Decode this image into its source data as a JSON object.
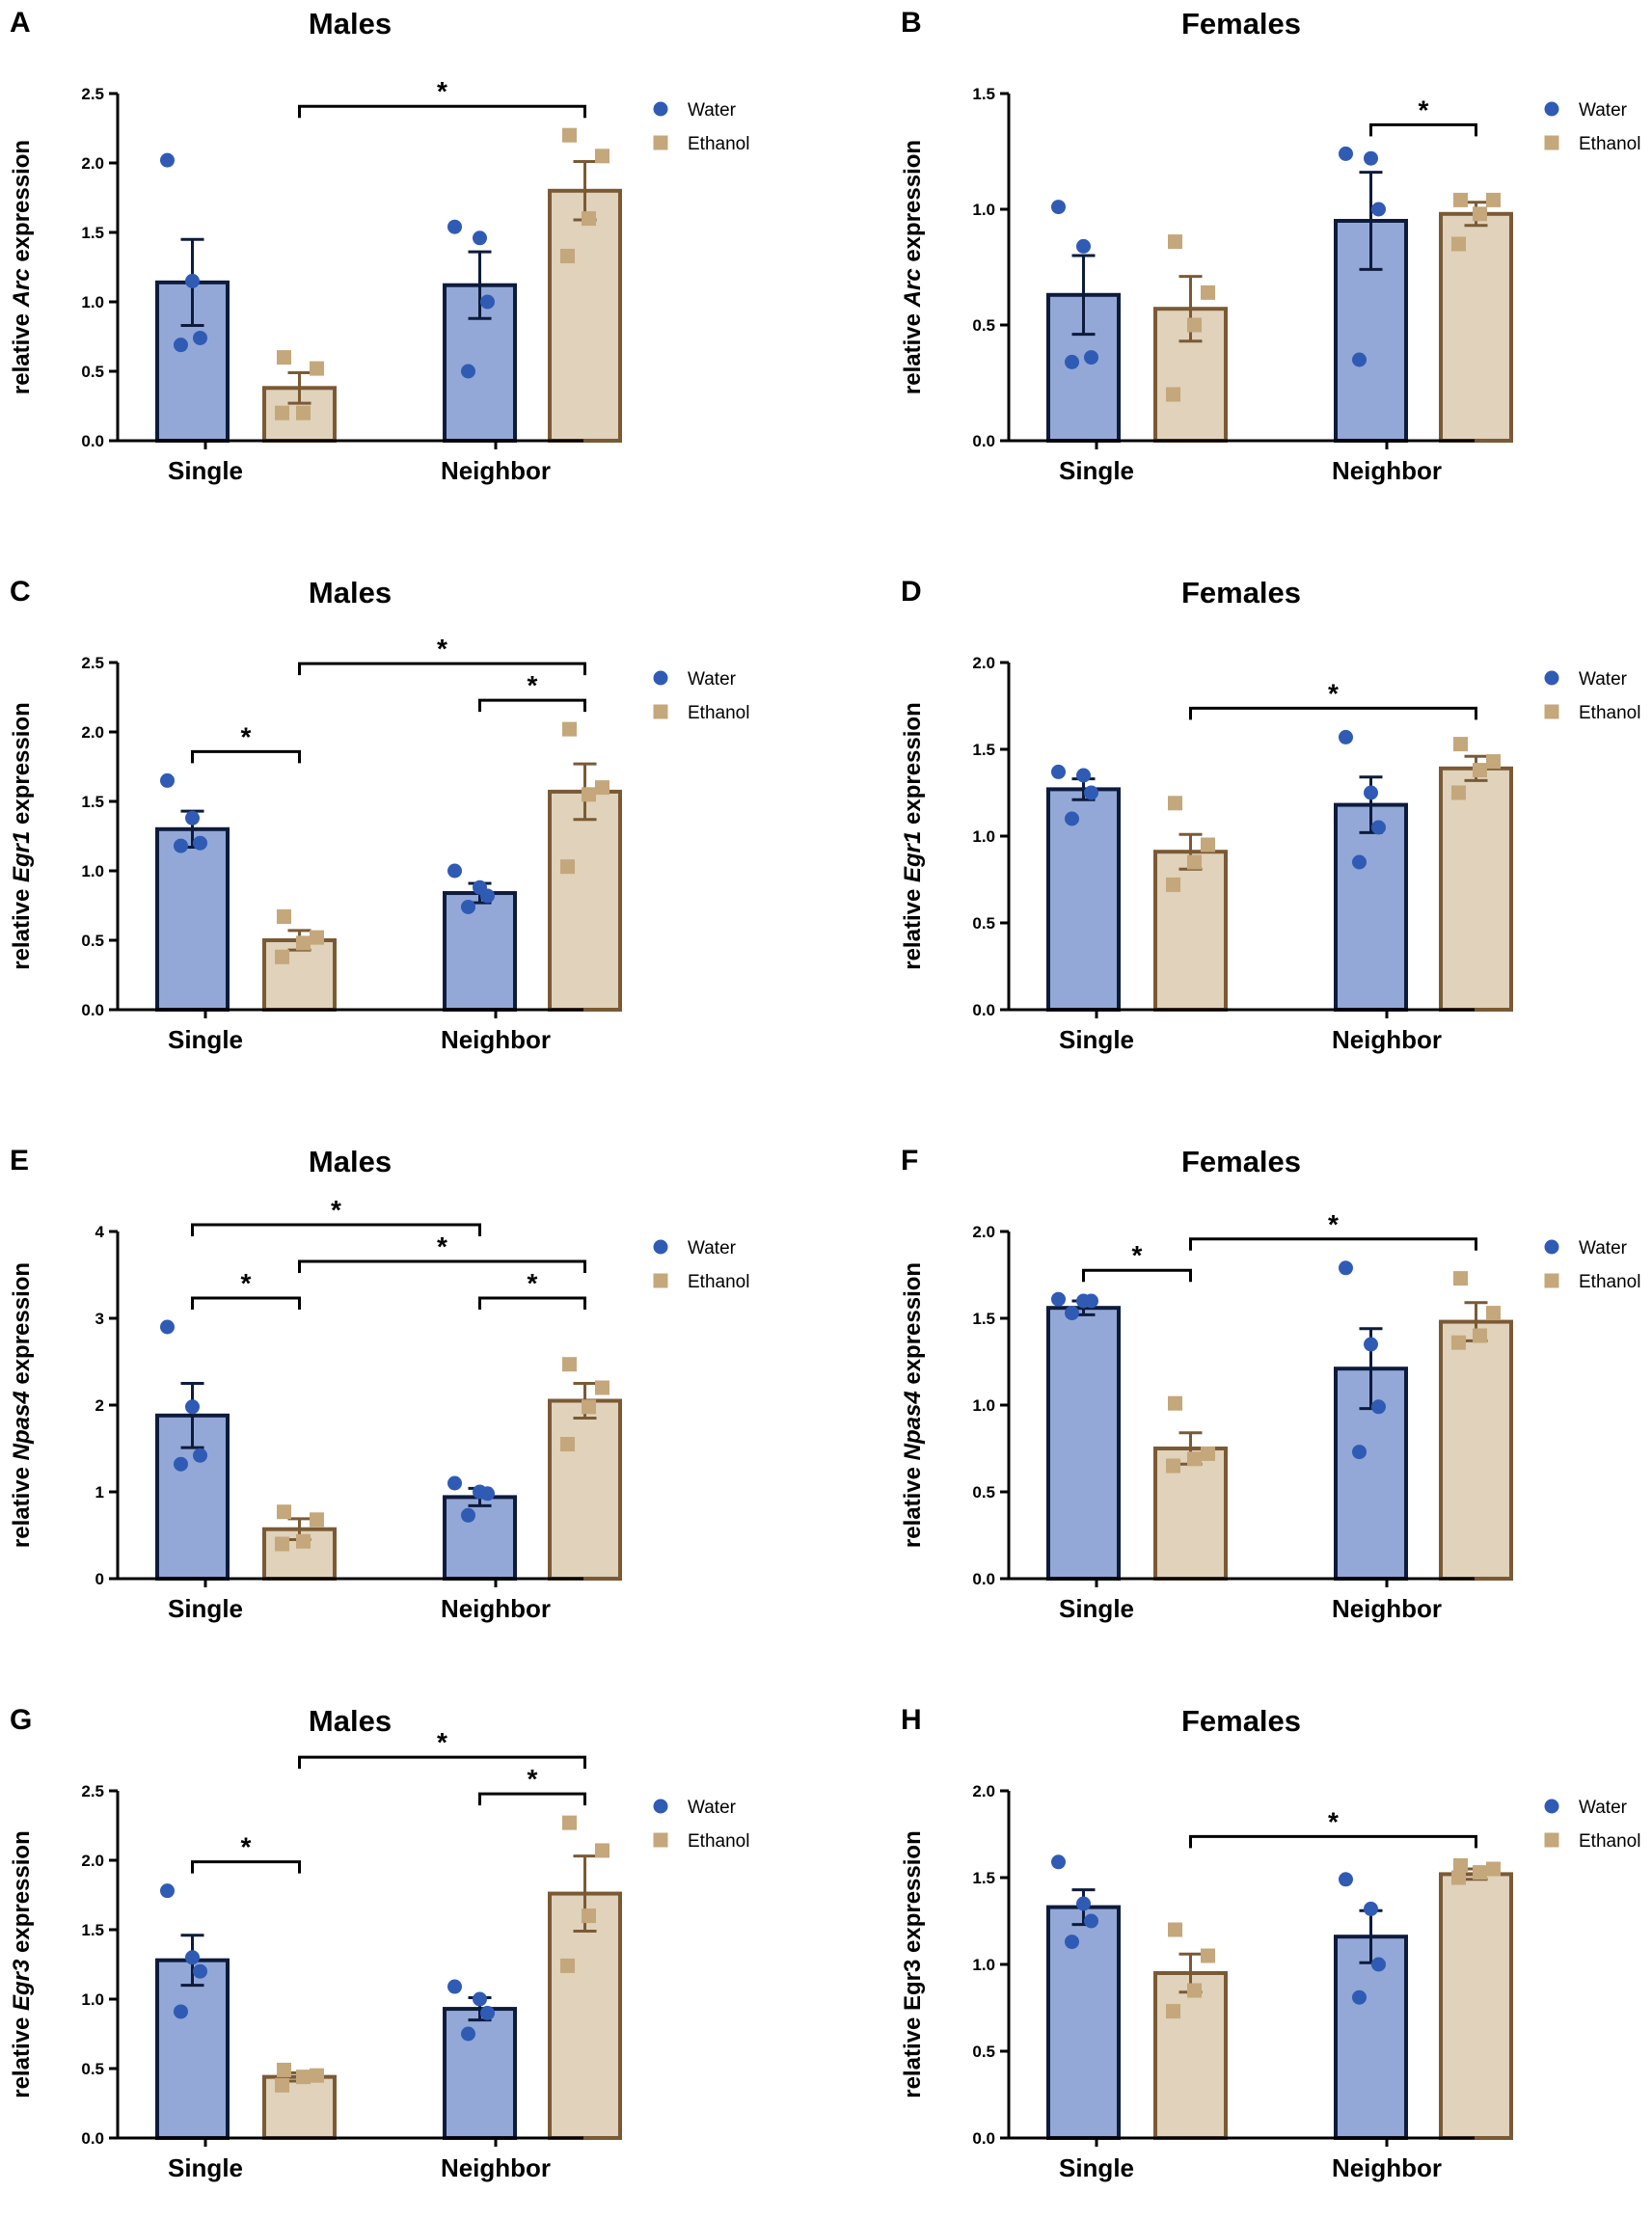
{
  "figure": {
    "legend": {
      "water": "Water",
      "ethanol": "Ethanol"
    },
    "colors": {
      "water_fill": "#93a8d6",
      "water_stroke": "#0d1b3d",
      "water_point": "#2f5bb5",
      "ethanol_fill": "#e0d2bb",
      "ethanol_stroke": "#7a5a35",
      "ethanol_point": "#c4a77b"
    }
  },
  "chart_data": [
    {
      "panel": "A",
      "title": "Males",
      "type": "bar",
      "ylabel_pre": "relative ",
      "ylabel_gene": "Arc",
      "ylabel_post": " expression",
      "ylim": [
        0,
        2.5
      ],
      "yticks": [
        "0.0",
        "0.5",
        "1.0",
        "1.5",
        "2.0",
        "2.5"
      ],
      "categories": [
        "Single",
        "Neighbor"
      ],
      "series": [
        {
          "name": "Water",
          "values": [
            1.14,
            1.12
          ],
          "sem": [
            0.31,
            0.24
          ],
          "points": [
            [
              2.02,
              1.15,
              0.74,
              0.69
            ],
            [
              1.54,
              1.46,
              1.0,
              0.5
            ]
          ]
        },
        {
          "name": "Ethanol",
          "values": [
            0.38,
            1.8
          ],
          "sem": [
            0.11,
            0.21
          ],
          "points": [
            [
              0.6,
              0.52,
              0.2,
              0.2
            ],
            [
              2.2,
              2.05,
              1.6,
              1.33
            ]
          ]
        }
      ],
      "significance": [
        {
          "bars": [
            1,
            3
          ],
          "level": 0,
          "label": "*"
        }
      ]
    },
    {
      "panel": "B",
      "title": "Females",
      "type": "bar",
      "ylabel_pre": "relative ",
      "ylabel_gene": "Arc",
      "ylabel_post": " expression",
      "ylim": [
        0,
        1.5
      ],
      "yticks": [
        "0.0",
        "0.5",
        "1.0",
        "1.5"
      ],
      "categories": [
        "Single",
        "Neighbor"
      ],
      "series": [
        {
          "name": "Water",
          "values": [
            0.63,
            0.95
          ],
          "sem": [
            0.17,
            0.21
          ],
          "points": [
            [
              1.01,
              0.84,
              0.36,
              0.34
            ],
            [
              1.24,
              1.22,
              1.0,
              0.35
            ]
          ]
        },
        {
          "name": "Ethanol",
          "values": [
            0.57,
            0.98
          ],
          "sem": [
            0.14,
            0.05
          ],
          "points": [
            [
              0.86,
              0.64,
              0.5,
              0.2
            ],
            [
              1.04,
              1.04,
              0.98,
              0.85
            ]
          ]
        }
      ],
      "significance": [
        {
          "bars": [
            2,
            3
          ],
          "level": 0,
          "label": "*"
        }
      ]
    },
    {
      "panel": "C",
      "title": "Males",
      "type": "bar",
      "ylabel_pre": "relative ",
      "ylabel_gene": "Egr1",
      "ylabel_post": " expression",
      "ylim": [
        0,
        2.5
      ],
      "yticks": [
        "0.0",
        "0.5",
        "1.0",
        "1.5",
        "2.0",
        "2.5"
      ],
      "categories": [
        "Single",
        "Neighbor"
      ],
      "series": [
        {
          "name": "Water",
          "values": [
            1.3,
            0.84
          ],
          "sem": [
            0.13,
            0.07
          ],
          "points": [
            [
              1.65,
              1.38,
              1.2,
              1.18
            ],
            [
              1.0,
              0.88,
              0.82,
              0.74
            ]
          ]
        },
        {
          "name": "Ethanol",
          "values": [
            0.5,
            1.57
          ],
          "sem": [
            0.07,
            0.2
          ],
          "points": [
            [
              0.67,
              0.52,
              0.48,
              0.38
            ],
            [
              2.02,
              1.6,
              1.55,
              1.03
            ]
          ]
        }
      ],
      "significance": [
        {
          "bars": [
            0,
            1
          ],
          "level": 0,
          "label": "*"
        },
        {
          "bars": [
            2,
            3
          ],
          "level": 0,
          "label": "*"
        },
        {
          "bars": [
            1,
            3
          ],
          "level": 1,
          "label": "*"
        }
      ]
    },
    {
      "panel": "D",
      "title": "Females",
      "type": "bar",
      "ylabel_pre": "relative ",
      "ylabel_gene": "Egr1",
      "ylabel_post": " expression",
      "ylim": [
        0,
        2.0
      ],
      "yticks": [
        "0.0",
        "0.5",
        "1.0",
        "1.5",
        "2.0"
      ],
      "categories": [
        "Single",
        "Neighbor"
      ],
      "series": [
        {
          "name": "Water",
          "values": [
            1.27,
            1.18
          ],
          "sem": [
            0.06,
            0.16
          ],
          "points": [
            [
              1.37,
              1.35,
              1.25,
              1.1
            ],
            [
              1.57,
              1.25,
              1.05,
              0.85
            ]
          ]
        },
        {
          "name": "Ethanol",
          "values": [
            0.91,
            1.39
          ],
          "sem": [
            0.1,
            0.07
          ],
          "points": [
            [
              1.19,
              0.95,
              0.85,
              0.72
            ],
            [
              1.53,
              1.43,
              1.38,
              1.25
            ]
          ]
        }
      ],
      "significance": [
        {
          "bars": [
            1,
            3
          ],
          "level": 0,
          "label": "*"
        }
      ]
    },
    {
      "panel": "E",
      "title": "Males",
      "type": "bar",
      "ylabel_pre": "relative ",
      "ylabel_gene": "Npas4",
      "ylabel_post": " expression",
      "ylim": [
        0,
        4
      ],
      "yticks": [
        "0",
        "1",
        "2",
        "3",
        "4"
      ],
      "categories": [
        "Single",
        "Neighbor"
      ],
      "series": [
        {
          "name": "Water",
          "values": [
            1.88,
            0.94
          ],
          "sem": [
            0.37,
            0.1
          ],
          "points": [
            [
              2.9,
              1.98,
              1.42,
              1.32
            ],
            [
              1.1,
              1.0,
              0.98,
              0.73
            ]
          ]
        },
        {
          "name": "Ethanol",
          "values": [
            0.57,
            2.05
          ],
          "sem": [
            0.12,
            0.2
          ],
          "points": [
            [
              0.77,
              0.68,
              0.43,
              0.4
            ],
            [
              2.47,
              2.2,
              1.98,
              1.55
            ]
          ]
        }
      ],
      "significance": [
        {
          "bars": [
            0,
            1
          ],
          "level": 0,
          "label": "*"
        },
        {
          "bars": [
            2,
            3
          ],
          "level": 0,
          "label": "*"
        },
        {
          "bars": [
            1,
            3
          ],
          "level": 1,
          "label": "*"
        },
        {
          "bars": [
            0,
            2
          ],
          "level": 2,
          "label": "*"
        }
      ]
    },
    {
      "panel": "F",
      "title": "Females",
      "type": "bar",
      "ylabel_pre": "relative ",
      "ylabel_gene": "Npas4",
      "ylabel_post": " expression",
      "ylim": [
        0,
        2.0
      ],
      "yticks": [
        "0.0",
        "0.5",
        "1.0",
        "1.5",
        "2.0"
      ],
      "categories": [
        "Single",
        "Neighbor"
      ],
      "series": [
        {
          "name": "Water",
          "values": [
            1.56,
            1.21
          ],
          "sem": [
            0.04,
            0.23
          ],
          "points": [
            [
              1.61,
              1.6,
              1.6,
              1.53
            ],
            [
              1.79,
              1.35,
              0.99,
              0.73
            ]
          ]
        },
        {
          "name": "Ethanol",
          "values": [
            0.75,
            1.48
          ],
          "sem": [
            0.09,
            0.11
          ],
          "points": [
            [
              1.01,
              0.72,
              0.69,
              0.65
            ],
            [
              1.73,
              1.53,
              1.4,
              1.36
            ]
          ]
        }
      ],
      "significance": [
        {
          "bars": [
            0,
            1
          ],
          "level": 0,
          "label": "*"
        },
        {
          "bars": [
            1,
            3
          ],
          "level": 0,
          "label": "*"
        }
      ]
    },
    {
      "panel": "G",
      "title": "Males",
      "type": "bar",
      "ylabel_pre": "relative ",
      "ylabel_gene": "Egr3",
      "ylabel_post": " expression",
      "ylim": [
        0,
        2.5
      ],
      "yticks": [
        "0.0",
        "0.5",
        "1.0",
        "1.5",
        "2.0",
        "2.5"
      ],
      "categories": [
        "Single",
        "Neighbor"
      ],
      "series": [
        {
          "name": "Water",
          "values": [
            1.28,
            0.93
          ],
          "sem": [
            0.18,
            0.08
          ],
          "points": [
            [
              1.78,
              1.3,
              1.2,
              0.91
            ],
            [
              1.09,
              1.0,
              0.9,
              0.75
            ]
          ]
        },
        {
          "name": "Ethanol",
          "values": [
            0.44,
            1.76
          ],
          "sem": [
            0.03,
            0.27
          ],
          "points": [
            [
              0.49,
              0.45,
              0.44,
              0.38
            ],
            [
              2.27,
              2.07,
              1.6,
              1.24
            ]
          ]
        }
      ],
      "significance": [
        {
          "bars": [
            0,
            1
          ],
          "level": 0,
          "label": "*"
        },
        {
          "bars": [
            2,
            3
          ],
          "level": 0,
          "label": "*"
        },
        {
          "bars": [
            1,
            3
          ],
          "level": 1,
          "label": "*"
        }
      ]
    },
    {
      "panel": "H",
      "title": "Females",
      "type": "bar",
      "ylabel_pre": "relative ",
      "ylabel_gene": "Egr3",
      "ylabel_post": " expression",
      "ylabel_gene_italic": false,
      "ylim": [
        0,
        2.0
      ],
      "yticks": [
        "0.0",
        "0.5",
        "1.0",
        "1.5",
        "2.0"
      ],
      "categories": [
        "Single",
        "Neighbor"
      ],
      "series": [
        {
          "name": "Water",
          "values": [
            1.33,
            1.16
          ],
          "sem": [
            0.1,
            0.15
          ],
          "points": [
            [
              1.59,
              1.35,
              1.25,
              1.13
            ],
            [
              1.49,
              1.32,
              1.0,
              0.81
            ]
          ]
        },
        {
          "name": "Ethanol",
          "values": [
            0.95,
            1.52
          ],
          "sem": [
            0.11,
            0.03
          ],
          "points": [
            [
              1.2,
              1.05,
              0.85,
              0.73
            ],
            [
              1.57,
              1.55,
              1.53,
              1.5
            ]
          ]
        }
      ],
      "significance": [
        {
          "bars": [
            1,
            3
          ],
          "level": 0,
          "label": "*"
        }
      ]
    }
  ]
}
